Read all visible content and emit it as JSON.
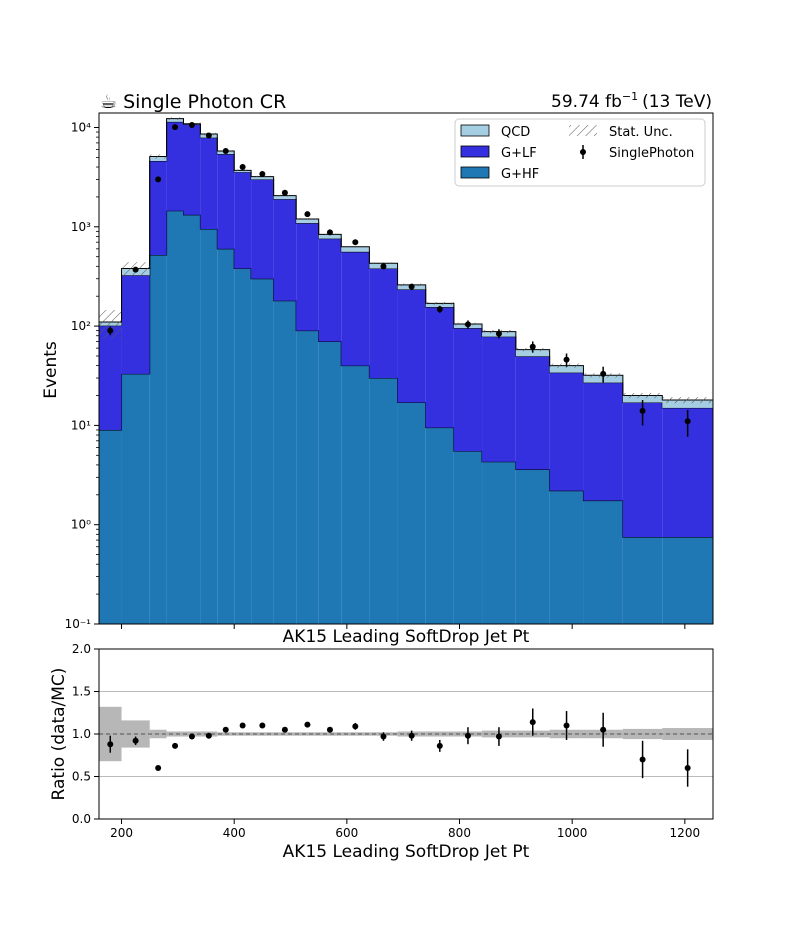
{
  "header": {
    "left_icon": "coffee-icon",
    "left_label": "☕ Single Photon CR",
    "lumi_value": "59.74 fb",
    "lumi_exp": "−1",
    "lumi_energy": "(13 TeV)"
  },
  "chart_data": [
    {
      "type": "bar",
      "subtype": "stacked-histogram",
      "ylabel": "Events",
      "xlabel": "AK15 Leading SoftDrop Jet Pt",
      "yscale": "log",
      "ylim": [
        0.1,
        14000
      ],
      "xlim": [
        160,
        1250
      ],
      "grid": false,
      "legend_position": "top-right",
      "yticks": [
        "10⁻¹",
        "10⁰",
        "10¹",
        "10²",
        "10³",
        "10⁴"
      ],
      "legend": [
        {
          "label": "QCD",
          "color": "#a6cee3",
          "icon": "filled-box"
        },
        {
          "label": "Stat. Unc.",
          "color": "#777777",
          "icon": "hatched-box"
        },
        {
          "label": "G+LF",
          "color": "#3430e0",
          "icon": "filled-box"
        },
        {
          "label": "SinglePhoton",
          "color": "#000000",
          "icon": "errorbar-point"
        },
        {
          "label": "G+HF",
          "color": "#1f78b4",
          "icon": "filled-box"
        }
      ],
      "bin_edges": [
        160,
        200,
        250,
        280,
        310,
        340,
        370,
        400,
        430,
        470,
        510,
        550,
        590,
        640,
        690,
        740,
        790,
        840,
        900,
        960,
        1020,
        1090,
        1160,
        1250
      ],
      "series": [
        {
          "name": "G+HF",
          "color": "#1f78b4",
          "values": [
            9,
            33,
            520,
            1450,
            1320,
            950,
            600,
            380,
            300,
            180,
            90,
            70,
            40,
            30,
            17,
            9.5,
            5.5,
            4.3,
            3.6,
            2.2,
            1.75,
            0.75,
            0.75
          ]
        },
        {
          "name": "G+LF",
          "color": "#3430e0",
          "values": [
            92,
            292,
            4080,
            9950,
            9480,
            6950,
            4800,
            3170,
            2700,
            1720,
            1000,
            690,
            520,
            350,
            217,
            146,
            90,
            74,
            46,
            31.8,
            25.2,
            16.25,
            14.25
          ]
        },
        {
          "name": "QCD",
          "color": "#a6cee3",
          "values": [
            9,
            55,
            500,
            900,
            100,
            700,
            400,
            150,
            200,
            160,
            110,
            80,
            70,
            50,
            26,
            14,
            9.5,
            9.7,
            8.4,
            6,
            5,
            3,
            3
          ]
        }
      ],
      "stat_unc_rel": [
        0.32,
        0.16,
        0.05,
        0.03,
        0.03,
        0.03,
        0.02,
        0.02,
        0.02,
        0.02,
        0.02,
        0.02,
        0.02,
        0.02,
        0.03,
        0.03,
        0.03,
        0.04,
        0.04,
        0.05,
        0.05,
        0.06,
        0.07
      ],
      "data_points": {
        "name": "SinglePhoton",
        "x": [
          180,
          225,
          265,
          295,
          325,
          355,
          385,
          415,
          450,
          490,
          530,
          570,
          615,
          665,
          715,
          765,
          815,
          870,
          930,
          990,
          1055,
          1125,
          1205
        ],
        "y": [
          90,
          370,
          3000,
          10100,
          10600,
          8300,
          5800,
          4000,
          3400,
          2200,
          1340,
          880,
          700,
          400,
          250,
          148,
          104,
          84,
          62,
          46,
          33,
          14,
          11
        ],
        "yerr": [
          9,
          19,
          55,
          100,
          103,
          91,
          76,
          63,
          58,
          47,
          37,
          30,
          26,
          20,
          16,
          12,
          10,
          9,
          8,
          7,
          6,
          4,
          3.3
        ]
      }
    },
    {
      "type": "scatter",
      "subtype": "ratio",
      "ylabel": "Ratio (data/MC)",
      "xlabel": "AK15 Leading SoftDrop Jet Pt",
      "xlim": [
        160,
        1250
      ],
      "ylim": [
        0,
        2
      ],
      "yticks": [
        "0.0",
        "0.5",
        "1.0",
        "1.5",
        "2.0"
      ],
      "xticks": [
        "200",
        "400",
        "600",
        "800",
        "1000",
        "1200"
      ],
      "xtick_values": [
        200,
        400,
        600,
        800,
        1000,
        1200
      ],
      "ytick_values": [
        0,
        0.5,
        1,
        1.5,
        2
      ],
      "grid": true,
      "x": [
        180,
        225,
        265,
        295,
        325,
        355,
        385,
        415,
        450,
        490,
        530,
        570,
        615,
        665,
        715,
        765,
        815,
        870,
        930,
        990,
        1055,
        1125,
        1205
      ],
      "y": [
        0.88,
        0.92,
        0.6,
        0.86,
        0.97,
        0.98,
        1.05,
        1.1,
        1.1,
        1.05,
        1.11,
        1.05,
        1.09,
        0.97,
        0.98,
        0.86,
        0.98,
        0.97,
        1.14,
        1.1,
        1.05,
        0.7,
        0.6
      ],
      "yerr": [
        0.1,
        0.05,
        0.02,
        0.01,
        0.01,
        0.01,
        0.01,
        0.02,
        0.02,
        0.02,
        0.03,
        0.03,
        0.04,
        0.05,
        0.06,
        0.07,
        0.1,
        0.11,
        0.16,
        0.17,
        0.2,
        0.22,
        0.22
      ]
    }
  ]
}
